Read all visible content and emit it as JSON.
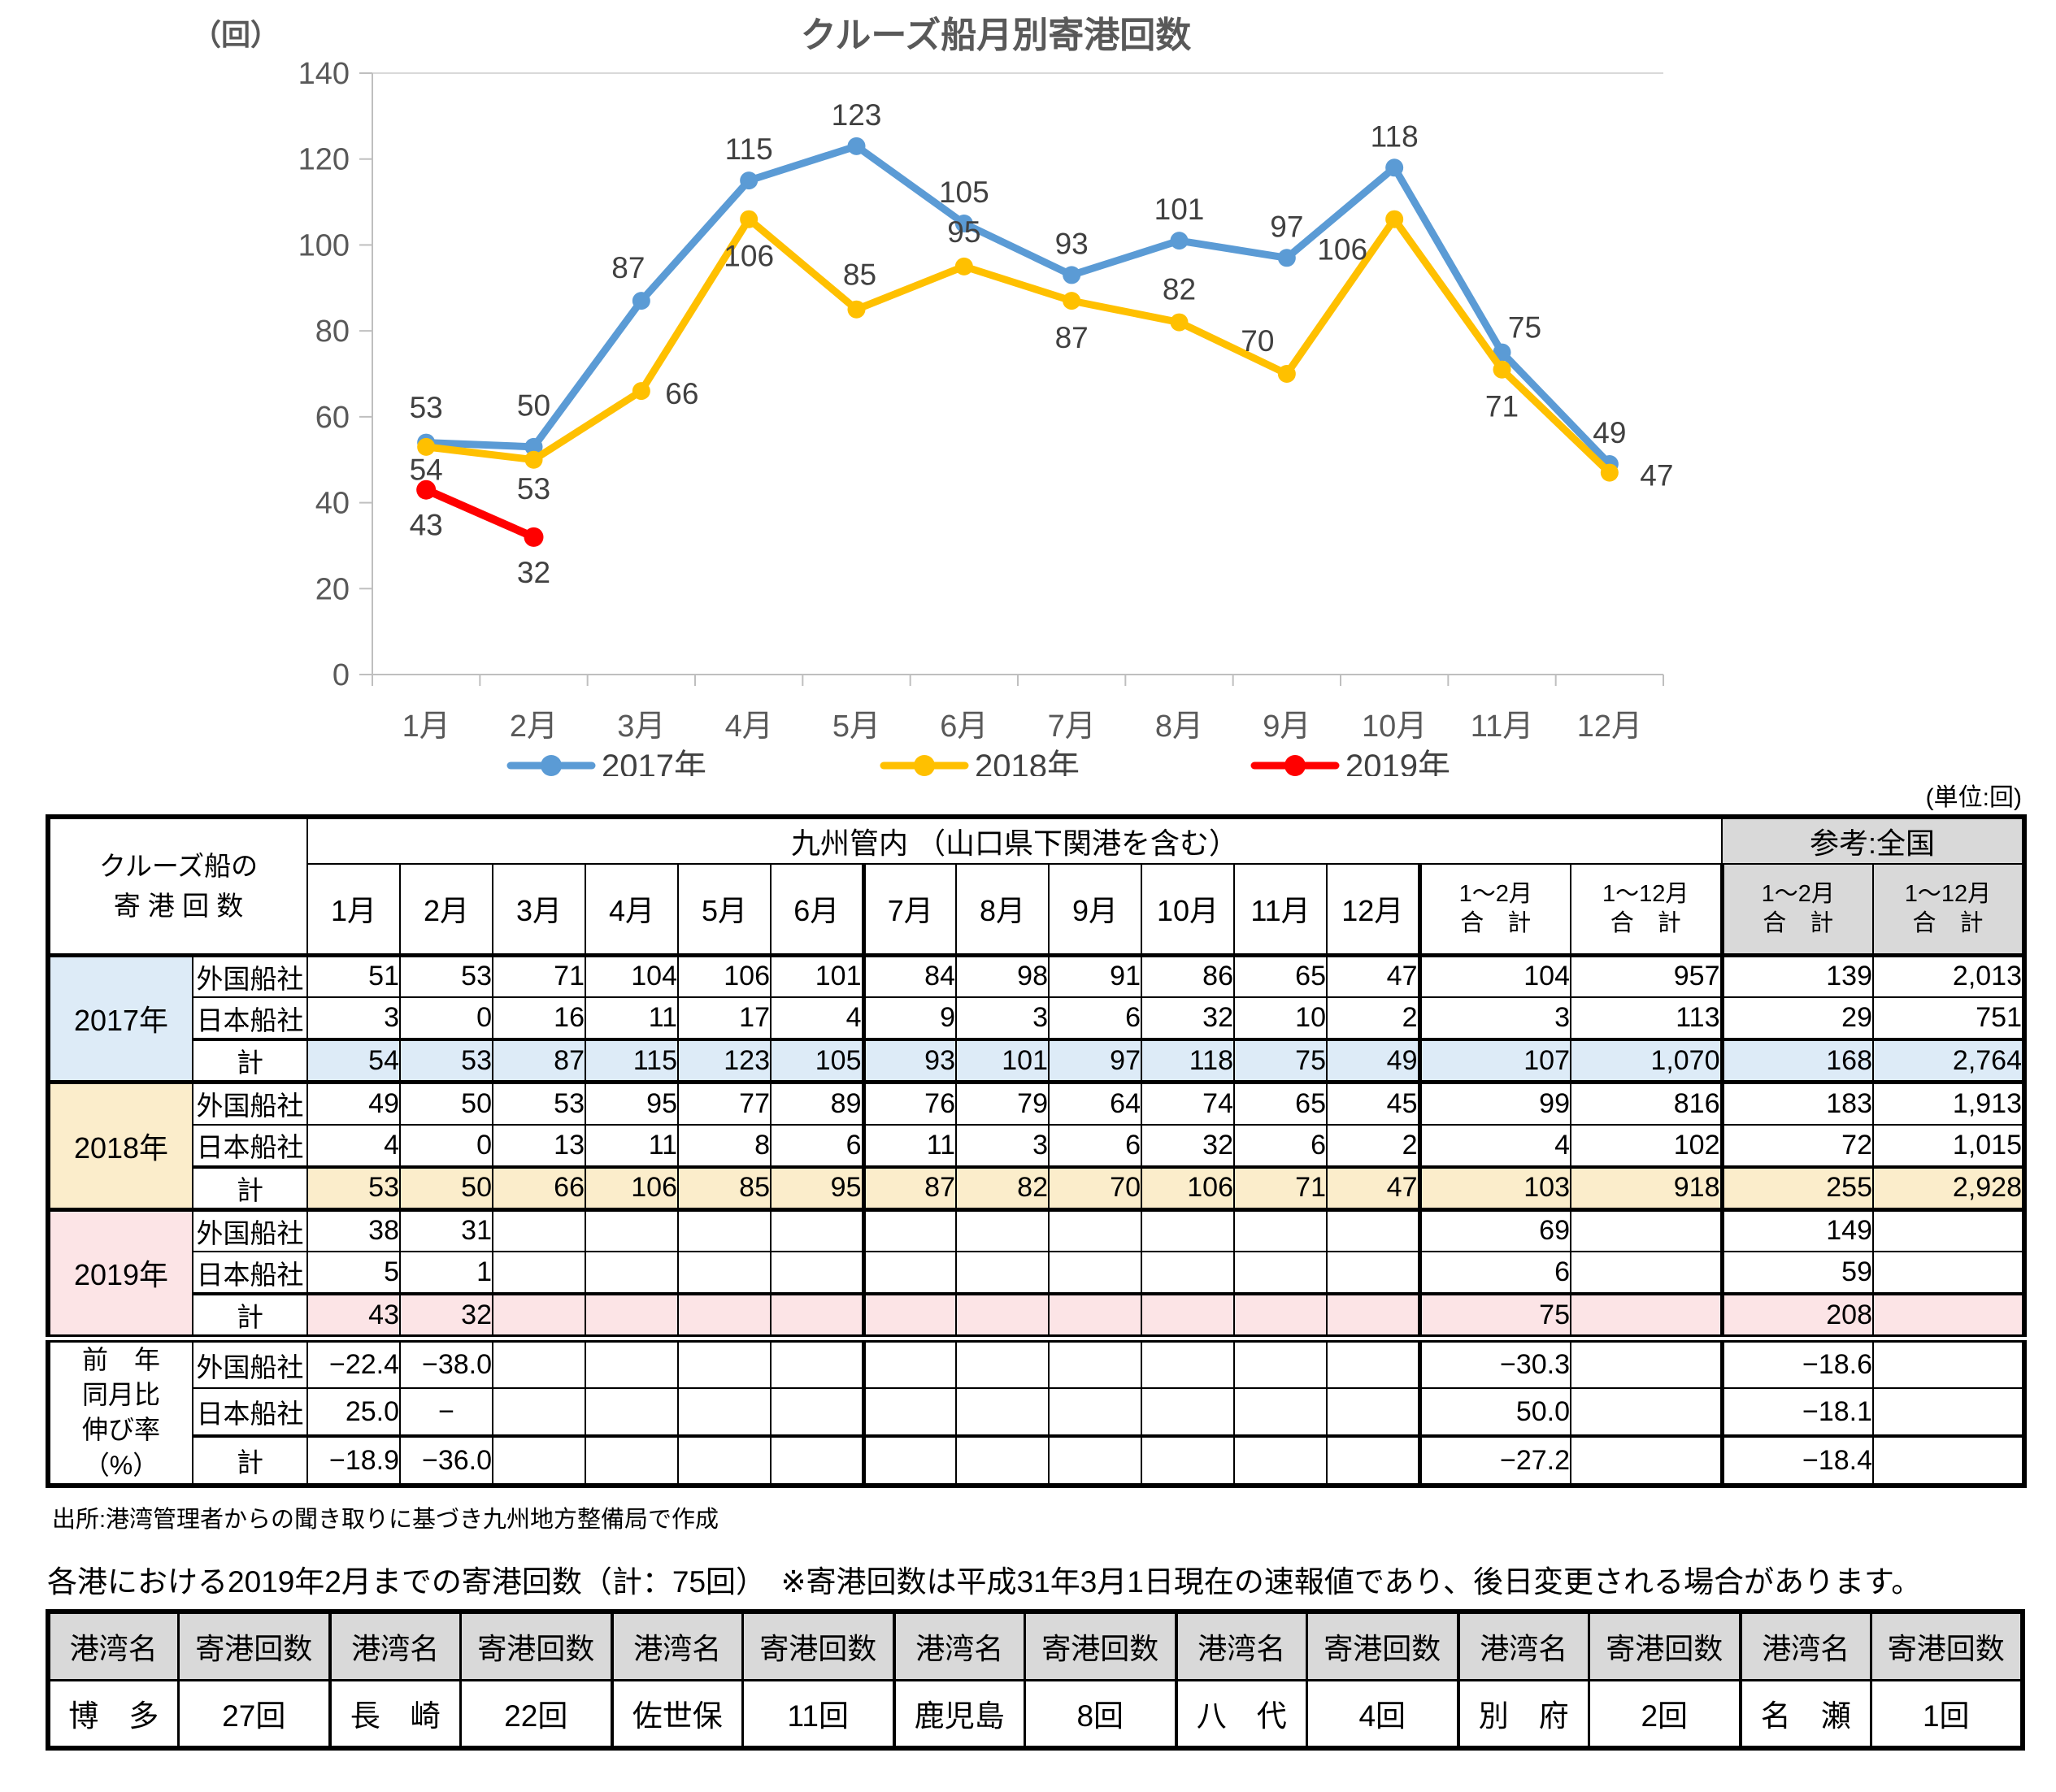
{
  "chart_data": {
    "type": "line",
    "title": "クルーズ船月別寄港回数",
    "y_axis_unit": "（回）",
    "x": [
      "1月",
      "2月",
      "3月",
      "4月",
      "5月",
      "6月",
      "7月",
      "8月",
      "9月",
      "10月",
      "11月",
      "12月"
    ],
    "ylim": [
      0,
      140
    ],
    "yticks": [
      0,
      20,
      40,
      60,
      80,
      100,
      120,
      140
    ],
    "grid": "top-line-only",
    "legend_position": "bottom",
    "series": [
      {
        "name": "2017年",
        "color": "#5B9BD5",
        "values": [
          54,
          53,
          87,
          115,
          123,
          105,
          93,
          101,
          97,
          118,
          75,
          49
        ]
      },
      {
        "name": "2018年",
        "color": "#FFC000",
        "values": [
          53,
          50,
          66,
          106,
          85,
          95,
          87,
          82,
          70,
          106,
          71,
          47
        ]
      },
      {
        "name": "2019年",
        "color": "#FF0000",
        "values": [
          43,
          32,
          null,
          null,
          null,
          null,
          null,
          null,
          null,
          null,
          null,
          null
        ]
      }
    ]
  },
  "main_table": {
    "unit_note": "(単位:回)",
    "corner": [
      "クルーズ船の",
      "寄 港 回 数"
    ],
    "region_header": "九州管内 （山口県下関港を含む）",
    "reference_header": "参考:全国",
    "months": [
      "1月",
      "2月",
      "3月",
      "4月",
      "5月",
      "6月",
      "7月",
      "8月",
      "9月",
      "10月",
      "11月",
      "12月"
    ],
    "sum_headers": [
      [
        "1～2月",
        "合　計"
      ],
      [
        "1～12月",
        "合　計"
      ],
      [
        "1～2月",
        "合　計"
      ],
      [
        "1～12月",
        "合　計"
      ]
    ],
    "groups": [
      {
        "year": "2017年",
        "theme": "blue",
        "rows": [
          {
            "label": "外国船社",
            "values": [
              "51",
              "53",
              "71",
              "104",
              "106",
              "101",
              "84",
              "98",
              "91",
              "86",
              "65",
              "47",
              "104",
              "957",
              "139",
              "2,013"
            ]
          },
          {
            "label": "日本船社",
            "values": [
              "3",
              "0",
              "16",
              "11",
              "17",
              "4",
              "9",
              "3",
              "6",
              "32",
              "10",
              "2",
              "3",
              "113",
              "29",
              "751"
            ]
          },
          {
            "label": "計",
            "values": [
              "54",
              "53",
              "87",
              "115",
              "123",
              "105",
              "93",
              "101",
              "97",
              "118",
              "75",
              "49",
              "107",
              "1,070",
              "168",
              "2,764"
            ]
          }
        ]
      },
      {
        "year": "2018年",
        "theme": "cream",
        "rows": [
          {
            "label": "外国船社",
            "values": [
              "49",
              "50",
              "53",
              "95",
              "77",
              "89",
              "76",
              "79",
              "64",
              "74",
              "65",
              "45",
              "99",
              "816",
              "183",
              "1,913"
            ]
          },
          {
            "label": "日本船社",
            "values": [
              "4",
              "0",
              "13",
              "11",
              "8",
              "6",
              "11",
              "3",
              "6",
              "32",
              "6",
              "2",
              "4",
              "102",
              "72",
              "1,015"
            ]
          },
          {
            "label": "計",
            "values": [
              "53",
              "50",
              "66",
              "106",
              "85",
              "95",
              "87",
              "82",
              "70",
              "106",
              "71",
              "47",
              "103",
              "918",
              "255",
              "2,928"
            ]
          }
        ]
      },
      {
        "year": "2019年",
        "theme": "pink",
        "rows": [
          {
            "label": "外国船社",
            "values": [
              "38",
              "31",
              "",
              "",
              "",
              "",
              "",
              "",
              "",
              "",
              "",
              "",
              "69",
              "",
              "149",
              ""
            ]
          },
          {
            "label": "日本船社",
            "values": [
              "5",
              "1",
              "",
              "",
              "",
              "",
              "",
              "",
              "",
              "",
              "",
              "",
              "6",
              "",
              "59",
              ""
            ]
          },
          {
            "label": "計",
            "values": [
              "43",
              "32",
              "",
              "",
              "",
              "",
              "",
              "",
              "",
              "",
              "",
              "",
              "75",
              "",
              "208",
              ""
            ]
          }
        ]
      }
    ],
    "growth": {
      "label_lines": [
        "前　年",
        "同月比",
        "伸び率",
        "（%）"
      ],
      "rows": [
        {
          "label": "外国船社",
          "values": [
            "−22.4",
            "−38.0",
            "",
            "",
            "",
            "",
            "",
            "",
            "",
            "",
            "",
            "",
            "−30.3",
            "",
            "−18.6",
            ""
          ]
        },
        {
          "label": "日本船社",
          "values": [
            "25.0",
            "−",
            "",
            "",
            "",
            "",
            "",
            "",
            "",
            "",
            "",
            "",
            "50.0",
            "",
            "−18.1",
            ""
          ]
        },
        {
          "label": "計",
          "values": [
            "−18.9",
            "−36.0",
            "",
            "",
            "",
            "",
            "",
            "",
            "",
            "",
            "",
            "",
            "−27.2",
            "",
            "−18.4",
            ""
          ]
        }
      ]
    },
    "source_note": "出所:港湾管理者からの聞き取りに基づき九州地方整備局で作成"
  },
  "ports_section": {
    "caption": "各港における2019年2月までの寄港回数（計：75回）　※寄港回数は平成31年3月1日現在の速報値であり、後日変更される場合があります。",
    "headers": [
      "港湾名",
      "寄港回数"
    ],
    "ports": [
      {
        "name": "博　多",
        "count": "27回"
      },
      {
        "name": "長　崎",
        "count": "22回"
      },
      {
        "name": "佐世保",
        "count": "11回"
      },
      {
        "name": "鹿児島",
        "count": "8回"
      },
      {
        "name": "八　代",
        "count": "4回"
      },
      {
        "name": "別　府",
        "count": "2回"
      },
      {
        "name": "名　瀬",
        "count": "1回"
      }
    ]
  },
  "colors": {
    "blue_fill": "#DDEBF7",
    "cream_fill": "#FBEDCB",
    "pink_fill": "#FCE4E6",
    "gray_fill": "#D9D9D9",
    "axis_text": "#595959",
    "label_text": "#404040"
  }
}
